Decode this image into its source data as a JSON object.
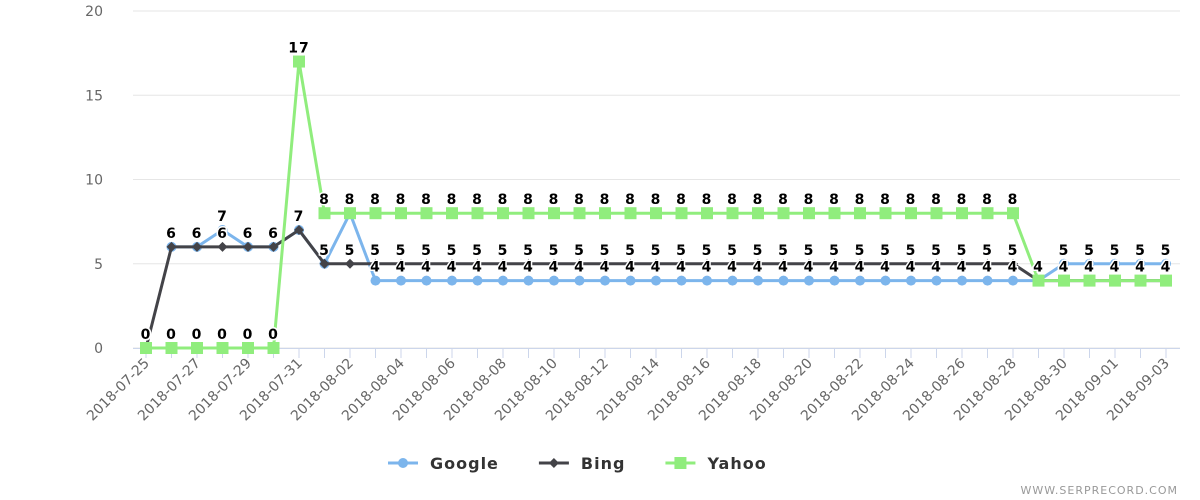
{
  "chart_data": {
    "type": "line",
    "categories": [
      "2018-07-25",
      null,
      "2018-07-27",
      null,
      "2018-07-29",
      null,
      "2018-07-31",
      null,
      "2018-08-02",
      null,
      "2018-08-04",
      null,
      "2018-08-06",
      null,
      "2018-08-08",
      null,
      "2018-08-10",
      null,
      "2018-08-12",
      null,
      "2018-08-14",
      null,
      "2018-08-16",
      null,
      "2018-08-18",
      null,
      "2018-08-20",
      null,
      "2018-08-22",
      null,
      "2018-08-24",
      null,
      "2018-08-26",
      null,
      "2018-08-28",
      null,
      "2018-08-30",
      null,
      "2018-09-01",
      null,
      "2018-09-03"
    ],
    "series": [
      {
        "name": "Google",
        "color": "#7cb5ec",
        "marker": "circle",
        "values": [
          null,
          6,
          6,
          7,
          6,
          6,
          7,
          5,
          8,
          4,
          4,
          4,
          4,
          4,
          4,
          4,
          4,
          4,
          4,
          4,
          4,
          4,
          4,
          4,
          4,
          4,
          4,
          4,
          4,
          4,
          4,
          4,
          4,
          4,
          4,
          4,
          5,
          5,
          5,
          5,
          5
        ]
      },
      {
        "name": "Bing",
        "color": "#434348",
        "marker": "diamond",
        "values": [
          0,
          6,
          6,
          6,
          6,
          6,
          7,
          5,
          5,
          5,
          5,
          5,
          5,
          5,
          5,
          5,
          5,
          5,
          5,
          5,
          5,
          5,
          5,
          5,
          5,
          5,
          5,
          5,
          5,
          5,
          5,
          5,
          5,
          5,
          5,
          4,
          4,
          4,
          4,
          4,
          4
        ]
      },
      {
        "name": "Yahoo",
        "color": "#90ed7d",
        "marker": "square",
        "values": [
          0,
          0,
          0,
          0,
          0,
          0,
          17,
          8,
          8,
          8,
          8,
          8,
          8,
          8,
          8,
          8,
          8,
          8,
          8,
          8,
          8,
          8,
          8,
          8,
          8,
          8,
          8,
          8,
          8,
          8,
          8,
          8,
          8,
          8,
          8,
          4,
          4,
          4,
          4,
          4,
          4
        ]
      }
    ],
    "ylim": [
      0,
      20
    ],
    "yticks": [
      0,
      5,
      10,
      15,
      20
    ],
    "grid": true,
    "credit": "WWW.SERPRECORD.COM"
  }
}
